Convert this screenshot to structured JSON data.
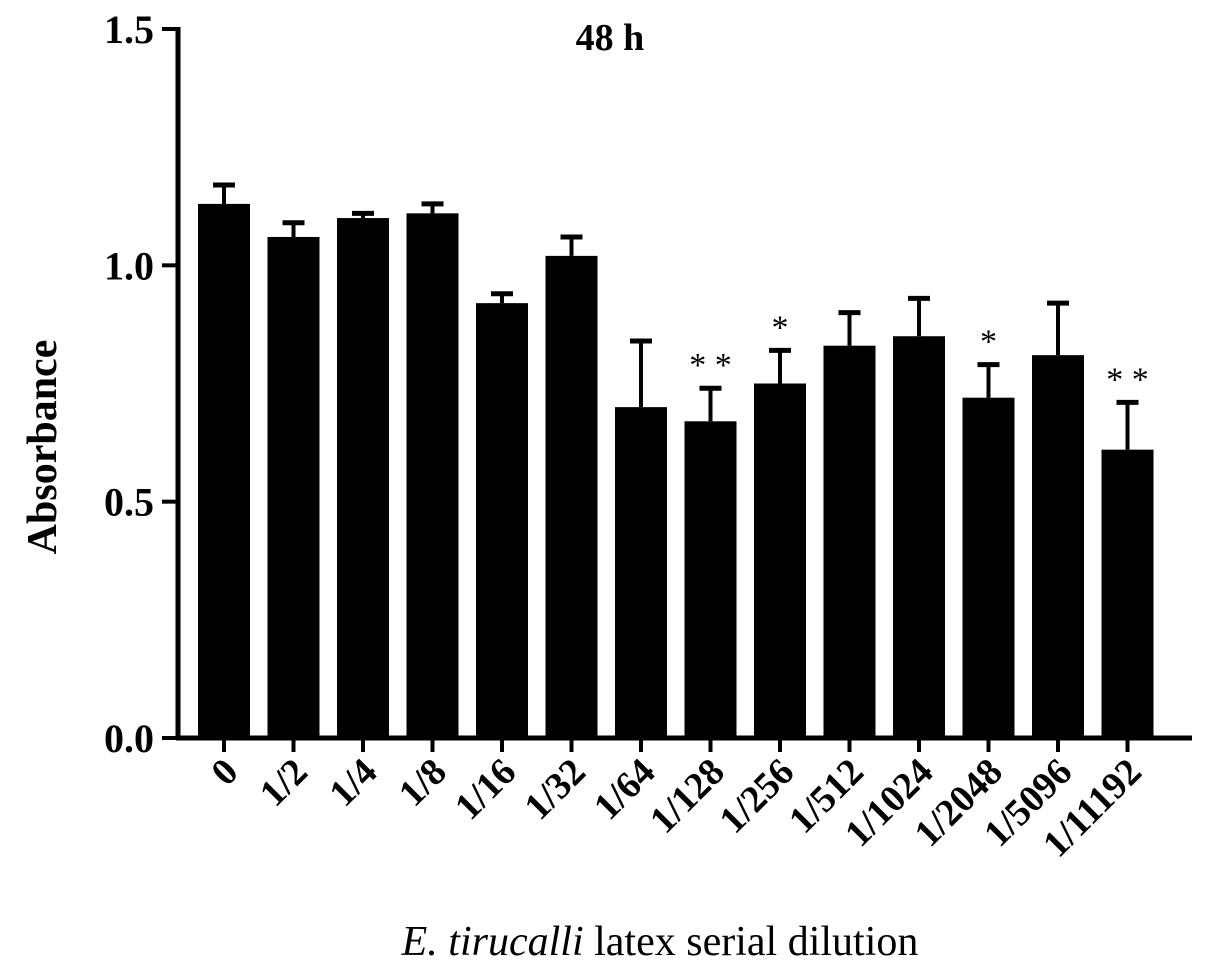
{
  "chart_data": {
    "type": "bar",
    "title": "48 h",
    "xlabel_italic": "E. tirucalli",
    "xlabel_rest": " latex serial dilution",
    "ylabel": "Absorbance",
    "ylim": [
      0,
      1.5
    ],
    "yticks": [
      0.0,
      0.5,
      1.0,
      1.5
    ],
    "ytick_labels": [
      "0.0",
      "0.5",
      "1.0",
      "1.5"
    ],
    "categories": [
      "0",
      "1/2",
      "1/4",
      "1/8",
      "1/16",
      "1/32",
      "1/64",
      "1/128",
      "1/256",
      "1/512",
      "1/1024",
      "1/2048",
      "1/5096",
      "1/11192"
    ],
    "values": [
      1.13,
      1.06,
      1.1,
      1.11,
      0.92,
      1.02,
      0.7,
      0.67,
      0.75,
      0.83,
      0.85,
      0.72,
      0.81,
      0.61
    ],
    "errors": [
      0.04,
      0.03,
      0.01,
      0.02,
      0.02,
      0.04,
      0.14,
      0.07,
      0.07,
      0.07,
      0.08,
      0.07,
      0.11,
      0.1
    ],
    "significance": [
      "",
      "",
      "",
      "",
      "",
      "",
      "",
      "**",
      "*",
      "",
      "",
      "*",
      "",
      "**"
    ],
    "bar_color": "#000000"
  }
}
